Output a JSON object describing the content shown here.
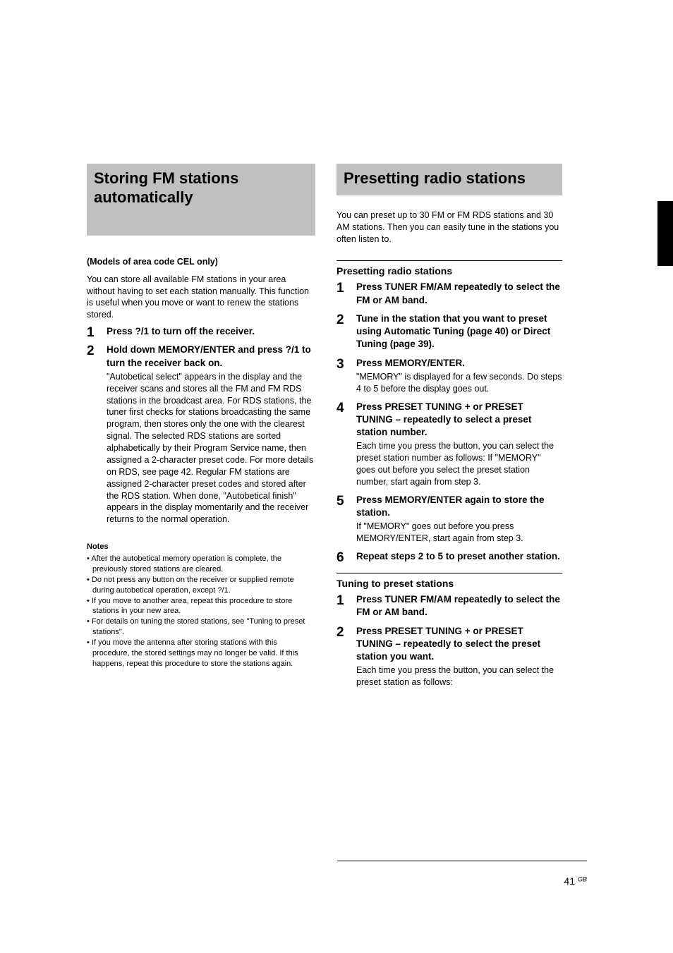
{
  "left": {
    "heading": "Storing FM stations automatically",
    "sub": "(Models of area code CEL only)",
    "intro": "You can store all available FM stations in your area without having to set each station manually. This function is useful when you move or want to renew the stations stored.",
    "steps": [
      {
        "head": "Press ?/1 to turn off the receiver."
      },
      {
        "head": "Hold down MEMORY/ENTER and press ?/1 to turn the receiver back on.",
        "body": "\"Autobetical select\" appears in the display and the receiver scans and stores all the FM and FM RDS stations in the broadcast area. For RDS stations, the tuner first checks for stations broadcasting the same program, then stores only the one with the clearest signal. The selected RDS stations are sorted alphabetically by their Program Service name, then assigned a 2-character preset code. For more details on RDS, see page 42. Regular FM stations are assigned 2-character preset codes and stored after the RDS station. When done, \"Autobetical finish\" appears in the display momentarily and the receiver returns to the normal operation."
      }
    ],
    "notes_h": "Notes",
    "notes": [
      "After the autobetical memory operation is complete, the previously stored stations are cleared.",
      "Do not press any button on the receiver or supplied remote during autobetical operation, except ?/1.",
      "If you move to another area, repeat this procedure to store stations in your new area.",
      "For details on tuning the stored stations, see \"Tuning to preset stations\".",
      "If you move the antenna after storing stations with this procedure, the stored settings may no longer be valid. If this happens, repeat this procedure to store the stations again."
    ]
  },
  "right": {
    "heading": "Presetting radio stations",
    "intro": "You can preset up to 30 FM or FM RDS stations and 30 AM stations. Then you can easily tune in the stations you often listen to.",
    "preset_h": "Presetting radio stations",
    "preset_steps": [
      {
        "head": "Press TUNER FM/AM repeatedly to select the FM or AM band."
      },
      {
        "head": "Tune in the station that you want to preset using Automatic Tuning (page 40) or Direct Tuning (page 39)."
      },
      {
        "head": "Press MEMORY/ENTER.",
        "body": "\"MEMORY\" is displayed for a few seconds. Do steps 4 to 5 before the display goes out."
      },
      {
        "head": "Press PRESET TUNING + or PRESET TUNING – repeatedly to select a preset station number.",
        "body": "Each time you press the button, you can select the preset station number as follows: If \"MEMORY\" goes out before you select the preset station number, start again from step 3."
      },
      {
        "head": "Press MEMORY/ENTER again to store the station.",
        "body": "If \"MEMORY\" goes out before you press MEMORY/ENTER, start again from step 3."
      },
      {
        "head": "Repeat steps 2 to 5 to preset another station."
      }
    ],
    "tune_h": "Tuning to preset stations",
    "tune_steps": [
      {
        "head": "Press TUNER FM/AM repeatedly to select the FM or AM band."
      },
      {
        "head": "Press PRESET TUNING + or PRESET TUNING – repeatedly to select the preset station you want.",
        "body": "Each time you press the button, you can select the preset station as follows:"
      }
    ]
  },
  "footer": {
    "page": "41",
    "label": "GB"
  }
}
